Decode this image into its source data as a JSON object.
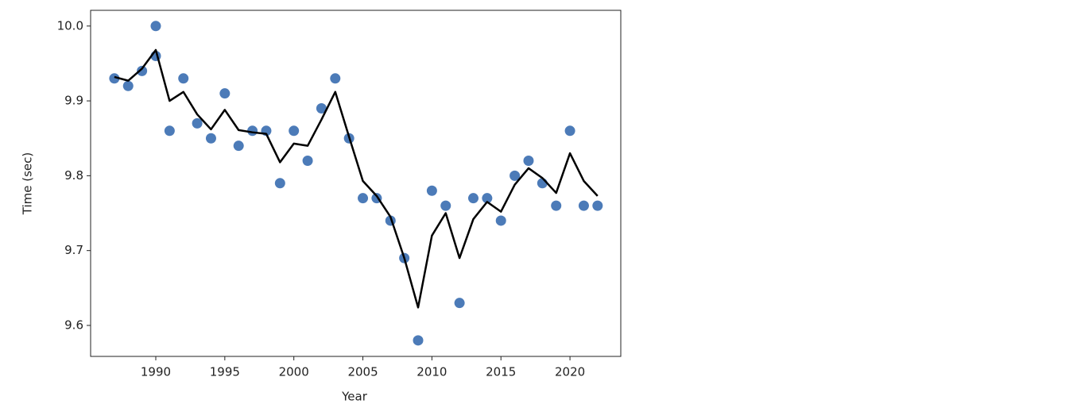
{
  "chart_data": {
    "type": "scatter",
    "xlabel": "Year",
    "ylabel": "Time (sec)",
    "xlim": [
      1985.28,
      2023.68
    ],
    "ylim": [
      9.5586,
      10.021
    ],
    "xticks": [
      1990,
      1995,
      2000,
      2005,
      2010,
      2015,
      2020
    ],
    "yticks": [
      9.6,
      9.7,
      9.8,
      9.9,
      {
        "value": 10.0,
        "label": "10.0"
      }
    ],
    "grid": false,
    "series": [
      {
        "type": "scatter",
        "color": "#4c7bb8",
        "x": [
          1987,
          1988,
          1989,
          1990,
          1990,
          1991,
          1992,
          1993,
          1994,
          1995,
          1996,
          1997,
          1998,
          1999,
          2000,
          2001,
          2002,
          2003,
          2004,
          2005,
          2006,
          2007,
          2008,
          2009,
          2010,
          2011,
          2012,
          2013,
          2014,
          2015,
          2016,
          2017,
          2018,
          2019,
          2020,
          2021,
          2022
        ],
        "values": [
          9.93,
          9.92,
          9.94,
          10.0,
          9.96,
          9.86,
          9.93,
          9.87,
          9.85,
          9.91,
          9.84,
          9.86,
          9.86,
          9.79,
          9.86,
          9.82,
          9.89,
          9.93,
          9.85,
          9.77,
          9.77,
          9.74,
          9.69,
          9.58,
          9.78,
          9.76,
          9.63,
          9.77,
          9.77,
          9.74,
          9.8,
          9.82,
          9.79,
          9.76,
          9.86,
          9.76,
          9.76
        ]
      },
      {
        "type": "line",
        "color": "#000000",
        "x": [
          1987,
          1988,
          1989,
          1990,
          1991,
          1992,
          1993,
          1994,
          1995,
          1996,
          1997,
          1998,
          1999,
          2000,
          2001,
          2002,
          2003,
          2004,
          2005,
          2006,
          2007,
          2008,
          2009,
          2010,
          2011,
          2012,
          2013,
          2014,
          2015,
          2016,
          2017,
          2018,
          2019,
          2020,
          2021,
          2022
        ],
        "values": [
          9.932,
          9.927,
          9.943,
          9.968,
          9.9,
          9.912,
          9.882,
          9.862,
          9.888,
          9.861,
          9.858,
          9.856,
          9.818,
          9.843,
          9.84,
          9.875,
          9.912,
          9.852,
          9.793,
          9.773,
          9.745,
          9.69,
          9.624,
          9.72,
          9.75,
          9.69,
          9.742,
          9.765,
          9.752,
          9.788,
          9.81,
          9.797,
          9.777,
          9.83,
          9.793,
          9.773
        ]
      }
    ]
  }
}
